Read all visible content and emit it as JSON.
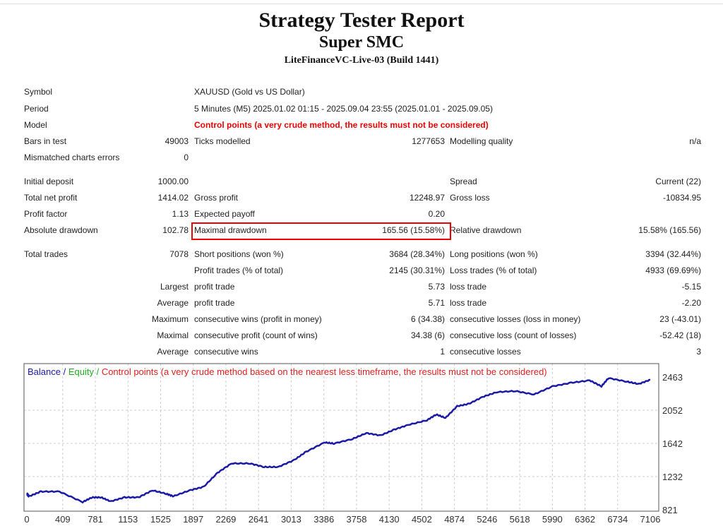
{
  "header": {
    "title": "Strategy Tester Report",
    "expert": "Super SMC",
    "server": "LiteFinanceVC-Live-03 (Build 1441)"
  },
  "info": {
    "symbol_label": "Symbol",
    "symbol": "XAUUSD (Gold vs US Dollar)",
    "period_label": "Period",
    "period": "5 Minutes (M5) 2025.01.02 01:15 - 2025.09.04 23:55 (2025.01.01 - 2025.09.05)",
    "model_label": "Model",
    "model": "Control points (a very crude method, the results must not be considered)",
    "bars_label": "Bars in test",
    "bars": "49003",
    "ticks_label": "Ticks modelled",
    "ticks": "1277653",
    "quality_label": "Modelling quality",
    "quality": "n/a",
    "mismatch_label": "Mismatched charts errors",
    "mismatch": "0"
  },
  "results": {
    "initial_label": "Initial deposit",
    "initial": "1000.00",
    "spread_label": "Spread",
    "spread": "Current (22)",
    "net_label": "Total net profit",
    "net": "1414.02",
    "gross_profit_label": "Gross profit",
    "gross_profit": "12248.97",
    "gross_loss_label": "Gross loss",
    "gross_loss": "-10834.95",
    "pf_label": "Profit factor",
    "pf": "1.13",
    "payoff_label": "Expected payoff",
    "payoff": "0.20",
    "abs_dd_label": "Absolute drawdown",
    "abs_dd": "102.78",
    "max_dd_label": "Maximal drawdown",
    "max_dd": "165.56 (15.58%)",
    "rel_dd_label": "Relative drawdown",
    "rel_dd": "15.58% (165.56)"
  },
  "trades": {
    "total_label": "Total trades",
    "total": "7078",
    "short_label": "Short positions (won %)",
    "short": "3684 (28.34%)",
    "long_label": "Long positions (won %)",
    "long": "3394 (32.44%)",
    "ptrades_label": "Profit trades (% of total)",
    "ptrades": "2145 (30.31%)",
    "ltrades_label": "Loss trades (% of total)",
    "ltrades": "4933 (69.69%)",
    "largest": "Largest",
    "largest_p_label": "profit trade",
    "largest_p": "5.73",
    "largest_l_label": "loss trade",
    "largest_l": "-5.15",
    "average": "Average",
    "avg_p_label": "profit trade",
    "avg_p": "5.71",
    "avg_l_label": "loss trade",
    "avg_l": "-2.20",
    "maximum": "Maximum",
    "max_w_label": "consecutive wins (profit in money)",
    "max_w": "6 (34.38)",
    "max_l_label": "consecutive losses (loss in money)",
    "max_l": "23 (-43.01)",
    "maximal": "Maximal",
    "mx_p_label": "consecutive profit (count of wins)",
    "mx_p": "34.38 (6)",
    "mx_l_label": "consecutive loss (count of losses)",
    "mx_l": "-52.42 (18)",
    "average2": "Average",
    "avg_w_label": "consecutive wins",
    "avg_w": "1",
    "avg_cl_label": "consecutive losses",
    "avg_cl": "3"
  },
  "chart_data": {
    "type": "line",
    "legend": {
      "balance": "Balance",
      "sep1": " / ",
      "equity": "Equity",
      "sep2": " / ",
      "note": "Control points (a very crude method based on the nearest less timeframe, the results must not be considered)"
    },
    "colors": {
      "balance": "#1a1aa6",
      "equity": "#22aa22",
      "note": "#e02020"
    },
    "x_ticks": [
      "0",
      "409",
      "781",
      "1153",
      "1525",
      "1897",
      "2269",
      "2641",
      "3013",
      "3386",
      "3758",
      "4130",
      "4502",
      "4874",
      "5246",
      "5618",
      "5990",
      "6362",
      "6734",
      "7106"
    ],
    "y_ticks": [
      "2463",
      "2052",
      "1642",
      "1232",
      "821"
    ],
    "xlim": [
      0,
      7106
    ],
    "ylim": [
      821,
      2463
    ],
    "series": [
      {
        "name": "Balance",
        "x": [
          0,
          27,
          159,
          371,
          636,
          742,
          848,
          955,
          1114,
          1273,
          1432,
          1591,
          1670,
          1856,
          2015,
          2174,
          2333,
          2545,
          2705,
          2864,
          3049,
          3182,
          3394,
          3500,
          3712,
          3871,
          4030,
          4189,
          4348,
          4560,
          4666,
          4772,
          4905,
          5038,
          5197,
          5356,
          5568,
          5780,
          5992,
          6204,
          6416,
          6549,
          6629,
          6840,
          6973,
          7106
        ],
        "y": [
          1018,
          988,
          1046,
          1046,
          916,
          974,
          974,
          925,
          974,
          974,
          1061,
          1018,
          988,
          1061,
          1104,
          1278,
          1394,
          1394,
          1350,
          1350,
          1437,
          1538,
          1654,
          1640,
          1697,
          1770,
          1740,
          1813,
          1871,
          1928,
          2000,
          1957,
          2102,
          2131,
          2218,
          2276,
          2290,
          2247,
          2348,
          2392,
          2421,
          2348,
          2450,
          2406,
          2377,
          2429
        ]
      }
    ]
  }
}
